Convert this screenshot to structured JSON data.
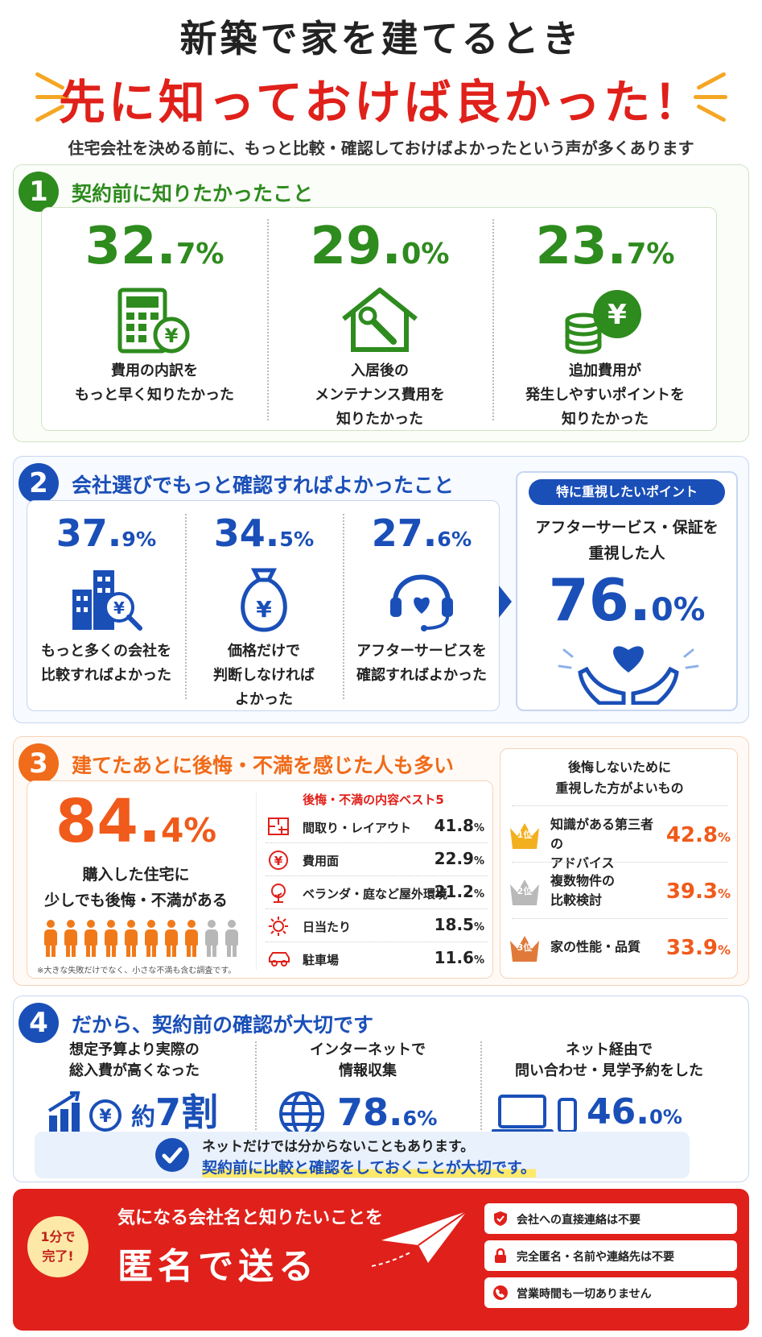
{
  "header": {
    "title_line1": "新築で家を建てるとき",
    "title_line2": "先に知っておけば良かった！",
    "subtitle": "住宅会社を決める前に、もっと比較・確認しておけばよかったという声が多くあります"
  },
  "section1": {
    "number": "1",
    "title": "契約前に知りたかったこと",
    "color": "#2e8b1e",
    "items": [
      {
        "pct_int": "32.",
        "pct_dec": "7%",
        "icon": "calculator-yen-icon",
        "lines": [
          "費用の内訳を",
          "もっと早く知りたかった"
        ]
      },
      {
        "pct_int": "29.",
        "pct_dec": "0%",
        "icon": "house-wrench-icon",
        "lines": [
          "入居後の",
          "メンテナンス費用を",
          "知りたかった"
        ]
      },
      {
        "pct_int": "23.",
        "pct_dec": "7%",
        "icon": "coins-yen-icon",
        "lines": [
          "追加費用が",
          "発生しやすいポイントを",
          "知りたかった"
        ]
      }
    ]
  },
  "section2": {
    "number": "2",
    "title": "会社選びでもっと確認すればよかったこと",
    "color": "#1a4fb8",
    "items": [
      {
        "pct_int": "37.",
        "pct_dec": "9%",
        "icon": "buildings-search-icon",
        "lines": [
          "もっと多くの会社を",
          "比較すればよかった"
        ]
      },
      {
        "pct_int": "34.",
        "pct_dec": "5%",
        "icon": "money-bag-yen-icon",
        "lines": [
          "価格だけで",
          "判断しなければ",
          "よかった"
        ]
      },
      {
        "pct_int": "27.",
        "pct_dec": "6%",
        "icon": "headset-heart-icon",
        "lines": [
          "アフターサービスを",
          "確認すればよかった"
        ]
      }
    ],
    "highlight": {
      "badge": "特に重視したいポイント",
      "lines": [
        "アフターサービス・保証を",
        "重視した人"
      ],
      "pct_int": "76.",
      "pct_dec": "0%",
      "icon": "hands-heart-icon"
    }
  },
  "section3": {
    "number": "3",
    "title": "建てたあとに後悔・不満を感じた人も多い",
    "color": "#f06b1a",
    "big_pct_int": "84.",
    "big_pct_dec": "4%",
    "big_lines": [
      "購入した住宅に",
      "少しでも後悔・不満がある"
    ],
    "note": "※大きな失敗だけでなく、小さな不満も含む調査です。",
    "people_total": 10,
    "people_highlight": 8,
    "list_title": "後悔・不満の内容ベスト5",
    "list": [
      {
        "icon": "floorplan-icon",
        "label": "間取り・レイアウト",
        "val": "41.8",
        "unit": "%"
      },
      {
        "icon": "yen-circle-icon",
        "label": "費用面",
        "val": "22.9",
        "unit": "%"
      },
      {
        "icon": "tree-icon",
        "label": "ベランダ・庭など屋外環境",
        "val": "21.2",
        "unit": "%"
      },
      {
        "icon": "sun-icon",
        "label": "日当たり",
        "val": "18.5",
        "unit": "%"
      },
      {
        "icon": "car-icon",
        "label": "駐車場",
        "val": "11.6",
        "unit": "%"
      }
    ],
    "ranking_title": [
      "後悔しないために",
      "重視した方がよいもの"
    ],
    "ranking": [
      {
        "rank": "1位",
        "lines": [
          "知識がある第三者の",
          "アドバイス"
        ],
        "val": "42.8",
        "unit": "%"
      },
      {
        "rank": "2位",
        "lines": [
          "複数物件の",
          "比較検討"
        ],
        "val": "39.3",
        "unit": "%"
      },
      {
        "rank": "3位",
        "lines": [
          "家の性能・品質"
        ],
        "val": "33.9",
        "unit": "%"
      }
    ]
  },
  "section4": {
    "number": "4",
    "title": "だから、契約前の確認が大切です",
    "color": "#1a4fb8",
    "items": [
      {
        "lines": [
          "想定予算より実際の",
          "総入費が高くなった"
        ],
        "prefix": "約",
        "value": "7割",
        "icon": "chart-up-yen-icon"
      },
      {
        "lines": [
          "インターネットで",
          "情報収集"
        ],
        "value_int": "78.",
        "value_dec": "6%",
        "icon": "globe-icon"
      },
      {
        "lines": [
          "ネット経由で",
          "問い合わせ・見学予約をした"
        ],
        "value_int": "46.",
        "value_dec": "0%",
        "icon": "laptop-phone-icon"
      }
    ],
    "note_line1": "ネットだけでは分からないこともあります。",
    "note_line2": "契約前に比較と確認をしておくことが大切です。"
  },
  "cta": {
    "badge": [
      "1分で",
      "完了!"
    ],
    "line1": "気になる会社名と知りたいことを",
    "line2": "匿名で送る",
    "features": [
      "会社への直接連絡は不要",
      "完全匿名・名前や連絡先は不要",
      "営業時間も一切ありません"
    ],
    "color": "#e0201a"
  }
}
